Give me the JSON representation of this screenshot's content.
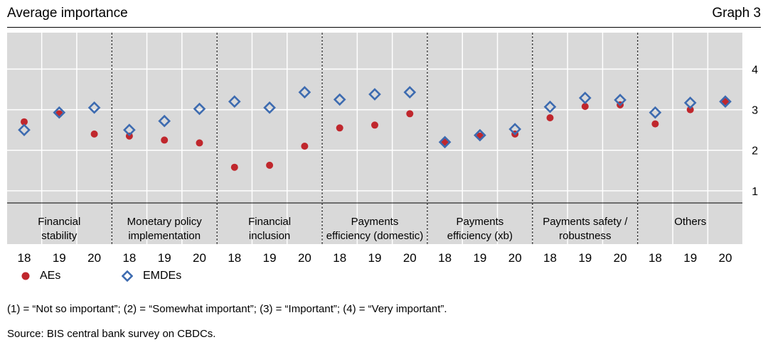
{
  "header": {
    "title": "Average importance",
    "graph_number": "Graph 3"
  },
  "chart_data": {
    "type": "scatter",
    "ylim": [
      0.7,
      4.9
    ],
    "yticks": [
      1,
      2,
      3,
      4
    ],
    "grid": true,
    "groups": [
      {
        "label_lines": [
          "Financial",
          "stability"
        ],
        "years": [
          "18",
          "19",
          "20"
        ]
      },
      {
        "label_lines": [
          "Monetary policy",
          "implementation"
        ],
        "years": [
          "18",
          "19",
          "20"
        ]
      },
      {
        "label_lines": [
          "Financial",
          "inclusion"
        ],
        "years": [
          "18",
          "19",
          "20"
        ]
      },
      {
        "label_lines": [
          "Payments",
          "efficiency (domestic)"
        ],
        "years": [
          "18",
          "19",
          "20"
        ]
      },
      {
        "label_lines": [
          "Payments",
          "efficiency (xb)"
        ],
        "years": [
          "18",
          "19",
          "20"
        ]
      },
      {
        "label_lines": [
          "Payments safety /",
          "robustness"
        ],
        "years": [
          "18",
          "19",
          "20"
        ]
      },
      {
        "label_lines": [
          "Others"
        ],
        "years": [
          "18",
          "19",
          "20"
        ]
      }
    ],
    "series": [
      {
        "name": "AEs",
        "marker": "circle",
        "color": "#c0272d",
        "values": [
          2.7,
          2.9,
          2.4,
          2.35,
          2.25,
          2.18,
          1.58,
          1.63,
          2.1,
          2.55,
          2.62,
          2.9,
          2.2,
          2.35,
          2.4,
          2.8,
          3.08,
          3.12,
          2.65,
          3.0,
          3.2
        ]
      },
      {
        "name": "EMDEs",
        "marker": "diamond",
        "color": "#3d6bb0",
        "values": [
          2.5,
          2.93,
          3.05,
          2.5,
          2.72,
          3.02,
          3.2,
          3.05,
          3.43,
          3.25,
          3.38,
          3.43,
          2.2,
          2.37,
          2.52,
          3.07,
          3.29,
          3.24,
          2.93,
          3.17,
          3.2
        ]
      }
    ]
  },
  "legend": {
    "ae_label": "AEs",
    "emde_label": "EMDEs"
  },
  "footnote": "(1) = “Not so important”; (2) = “Somewhat important”; (3) = “Important”; (4) = “Very important”.",
  "source": "Source: BIS central bank survey on CBDCs."
}
